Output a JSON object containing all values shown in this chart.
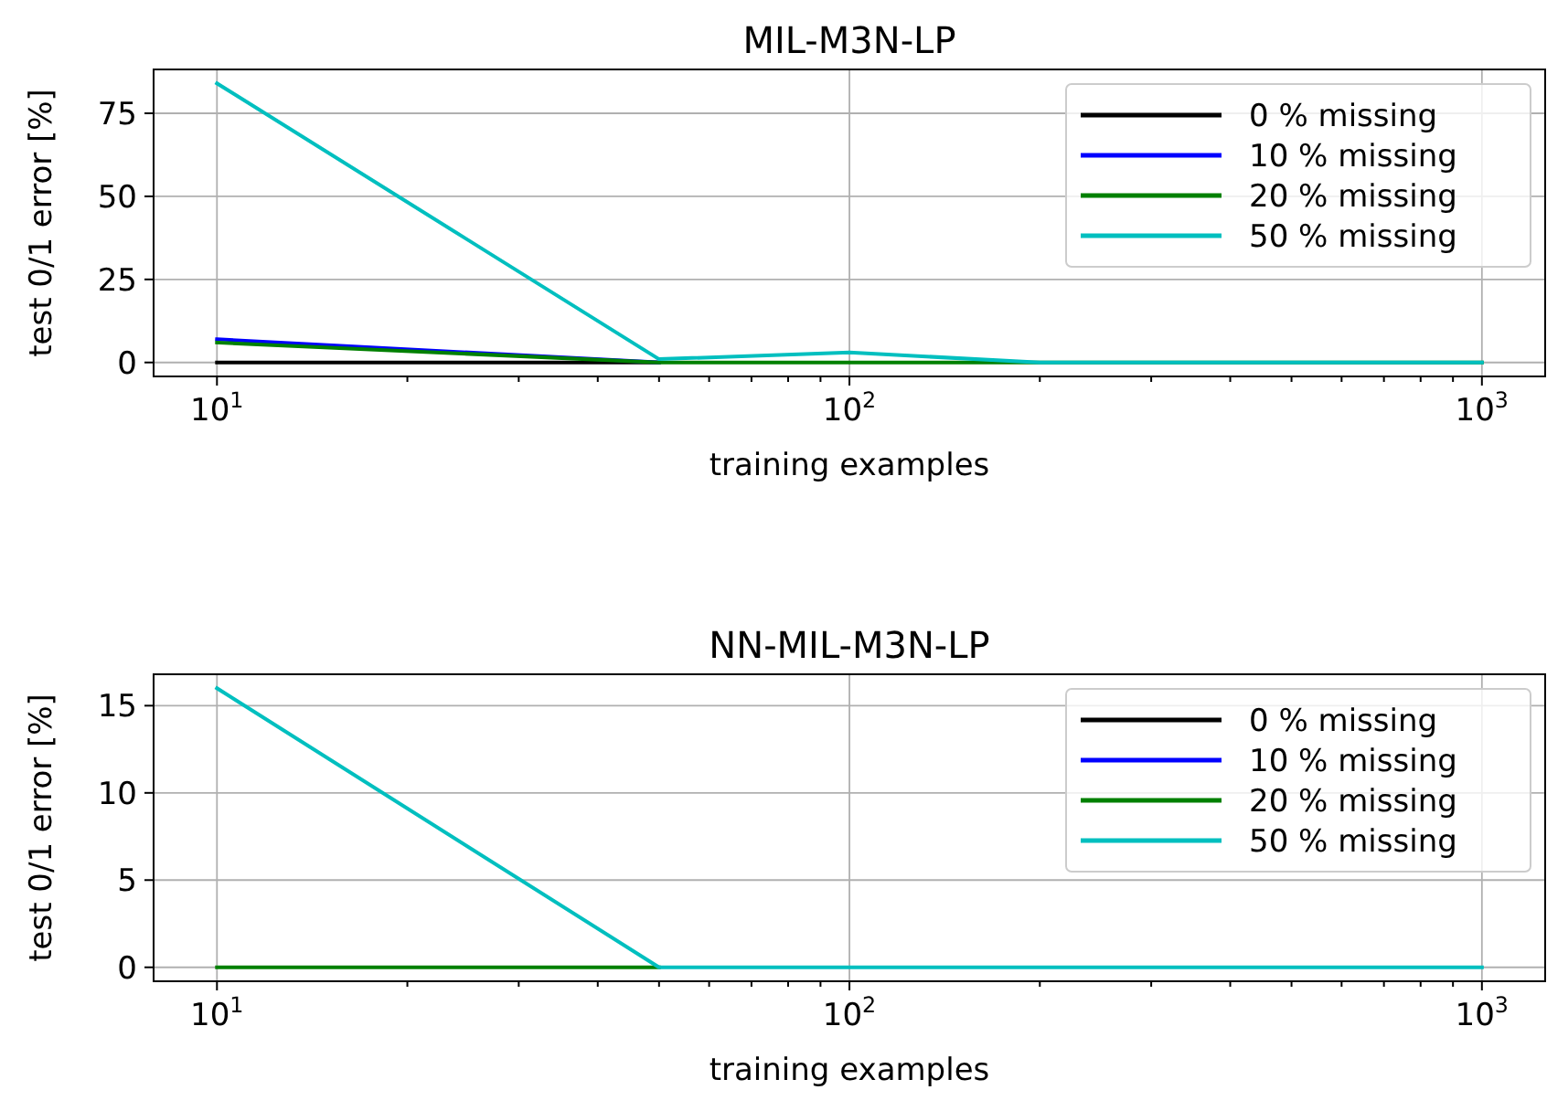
{
  "chart_data": [
    {
      "type": "line",
      "title": "MIL-M3N-LP",
      "xlabel": "training examples",
      "ylabel": "test 0/1 error [%]",
      "log": "x",
      "x": [
        10,
        50,
        100,
        200,
        1000
      ],
      "series": [
        {
          "name": "0 % missing",
          "color": "#000000",
          "values": [
            0,
            0,
            null,
            null,
            null
          ]
        },
        {
          "name": "10 % missing",
          "color": "#0000ff",
          "values": [
            7,
            0,
            null,
            null,
            null
          ]
        },
        {
          "name": "20 % missing",
          "color": "#008000",
          "values": [
            6,
            0,
            0,
            0,
            0
          ]
        },
        {
          "name": "50 % missing",
          "color": "#00bfbf",
          "values": [
            84,
            1,
            3,
            0,
            0
          ]
        }
      ],
      "xlim": [
        7.94,
        1259
      ],
      "xticks": [
        {
          "value": 10,
          "label": "10$^{1}$"
        },
        {
          "value": 20,
          "label": null
        },
        {
          "value": 30,
          "label": null
        },
        {
          "value": 40,
          "label": null
        },
        {
          "value": 50,
          "label": null
        },
        {
          "value": 60,
          "label": null
        },
        {
          "value": 70,
          "label": null
        },
        {
          "value": 80,
          "label": null
        },
        {
          "value": 90,
          "label": null
        },
        {
          "value": 100,
          "label": "10$^{2}$"
        },
        {
          "value": 200,
          "label": null
        },
        {
          "value": 300,
          "label": null
        },
        {
          "value": 400,
          "label": null
        },
        {
          "value": 500,
          "label": null
        },
        {
          "value": 600,
          "label": null
        },
        {
          "value": 700,
          "label": null
        },
        {
          "value": 800,
          "label": null
        },
        {
          "value": 900,
          "label": null
        },
        {
          "value": 1000,
          "label": "10$^{3}$"
        }
      ],
      "ylim": [
        -4.2,
        88.2
      ],
      "yticks": [
        0,
        25,
        50,
        75
      ],
      "grid": true,
      "legend": "top right",
      "line_style": "solid"
    },
    {
      "type": "line",
      "title": "NN-MIL-M3N-LP",
      "xlabel": "training examples",
      "ylabel": "test 0/1 error [%]",
      "log": "x",
      "x": [
        10,
        50,
        100,
        200,
        1000
      ],
      "series": [
        {
          "name": "0 % missing",
          "color": "#000000",
          "values": [
            null,
            null,
            null,
            null,
            null
          ]
        },
        {
          "name": "10 % missing",
          "color": "#0000ff",
          "values": [
            null,
            null,
            null,
            null,
            null
          ]
        },
        {
          "name": "20 % missing",
          "color": "#008000",
          "values": [
            0,
            0,
            null,
            null,
            null
          ]
        },
        {
          "name": "50 % missing",
          "color": "#00bfbf",
          "values": [
            16,
            0,
            0,
            0,
            0
          ]
        }
      ],
      "xlim": [
        7.94,
        1259
      ],
      "xticks": [
        {
          "value": 10,
          "label": "10$^{1}$"
        },
        {
          "value": 20,
          "label": null
        },
        {
          "value": 30,
          "label": null
        },
        {
          "value": 40,
          "label": null
        },
        {
          "value": 50,
          "label": null
        },
        {
          "value": 60,
          "label": null
        },
        {
          "value": 70,
          "label": null
        },
        {
          "value": 80,
          "label": null
        },
        {
          "value": 90,
          "label": null
        },
        {
          "value": 100,
          "label": "10$^{2}$"
        },
        {
          "value": 200,
          "label": null
        },
        {
          "value": 300,
          "label": null
        },
        {
          "value": 400,
          "label": null
        },
        {
          "value": 500,
          "label": null
        },
        {
          "value": 600,
          "label": null
        },
        {
          "value": 700,
          "label": null
        },
        {
          "value": 800,
          "label": null
        },
        {
          "value": 900,
          "label": null
        },
        {
          "value": 1000,
          "label": "10$^{3}$"
        }
      ],
      "ylim": [
        -0.8,
        16.8
      ],
      "yticks": [
        0,
        5,
        10,
        15
      ],
      "grid": true,
      "legend": "top right",
      "line_style": "solid"
    }
  ]
}
